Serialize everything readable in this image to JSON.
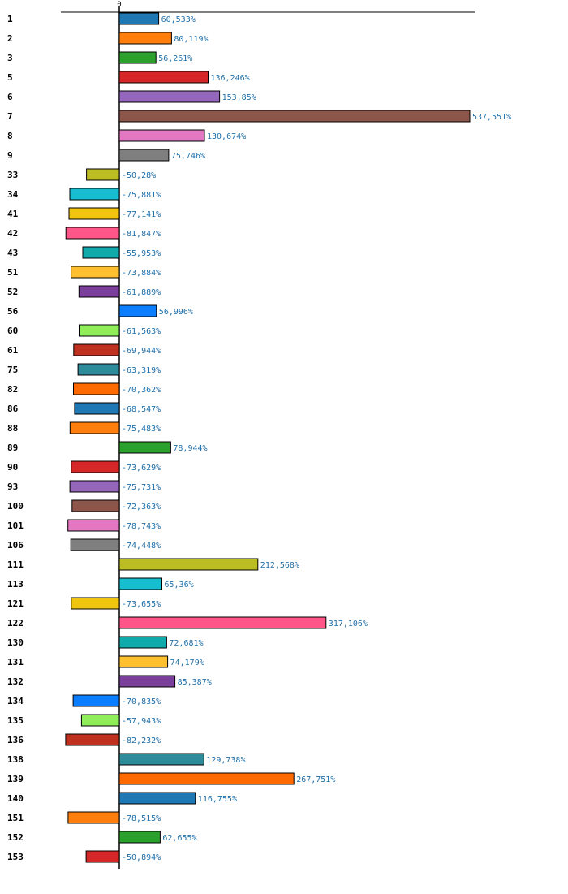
{
  "chart_data": {
    "type": "bar",
    "orientation": "horizontal",
    "title": "",
    "xlabel": "",
    "ylabel": "",
    "zero_tick_label": "0",
    "value_suffix": "%",
    "categories": [
      "1",
      "2",
      "3",
      "5",
      "6",
      "7",
      "8",
      "9",
      "33",
      "34",
      "41",
      "42",
      "43",
      "51",
      "52",
      "56",
      "60",
      "61",
      "75",
      "82",
      "86",
      "88",
      "89",
      "90",
      "93",
      "100",
      "101",
      "106",
      "111",
      "113",
      "121",
      "122",
      "130",
      "131",
      "132",
      "134",
      "135",
      "136",
      "138",
      "139",
      "140",
      "151",
      "152",
      "153"
    ],
    "values": [
      60.533,
      80.119,
      56.261,
      136.246,
      153.85,
      537.551,
      130.674,
      75.746,
      -50.28,
      -75.881,
      -77.141,
      -81.847,
      -55.953,
      -73.884,
      -61.889,
      56.996,
      -61.563,
      -69.944,
      -63.319,
      -70.362,
      -68.547,
      -75.483,
      78.944,
      -73.629,
      -75.731,
      -72.363,
      -78.743,
      -74.448,
      212.568,
      65.36,
      -73.655,
      317.106,
      72.681,
      74.179,
      85.387,
      -70.835,
      -57.943,
      -82.232,
      129.738,
      267.751,
      116.755,
      -78.515,
      62.655,
      -50.894
    ],
    "value_labels": [
      "60,533%",
      "80,119%",
      "56,261%",
      "136,246%",
      "153,85%",
      "537,551%",
      "130,674%",
      "75,746%",
      "-50,28%",
      "-75,881%",
      "-77,141%",
      "-81,847%",
      "-55,953%",
      "-73,884%",
      "-61,889%",
      "56,996%",
      "-61,563%",
      "-69,944%",
      "-63,319%",
      "-70,362%",
      "-68,547%",
      "-75,483%",
      "78,944%",
      "-73,629%",
      "-75,731%",
      "-72,363%",
      "-78,743%",
      "-74,448%",
      "212,568%",
      "65,36%",
      "-73,655%",
      "317,106%",
      "72,681%",
      "74,179%",
      "85,387%",
      "-70,835%",
      "-57,943%",
      "-82,232%",
      "129,738%",
      "267,751%",
      "116,755%",
      "-78,515%",
      "62,655%",
      "-50,894%"
    ],
    "colors": [
      "#1f77b4",
      "#ff7f0e",
      "#2ca02c",
      "#d62728",
      "#9467bd",
      "#8c564b",
      "#e377c2",
      "#7f7f7f",
      "#bcbd22",
      "#17becf",
      "#f1c40f",
      "#ff5588",
      "#11aaaa",
      "#ffc030",
      "#7a3f9a",
      "#0b7dff",
      "#90ee5a",
      "#c0301f",
      "#2e8b9a",
      "#ff6a00"
    ],
    "xlim": [
      -90,
      545
    ],
    "grid": false,
    "legend": "none"
  }
}
